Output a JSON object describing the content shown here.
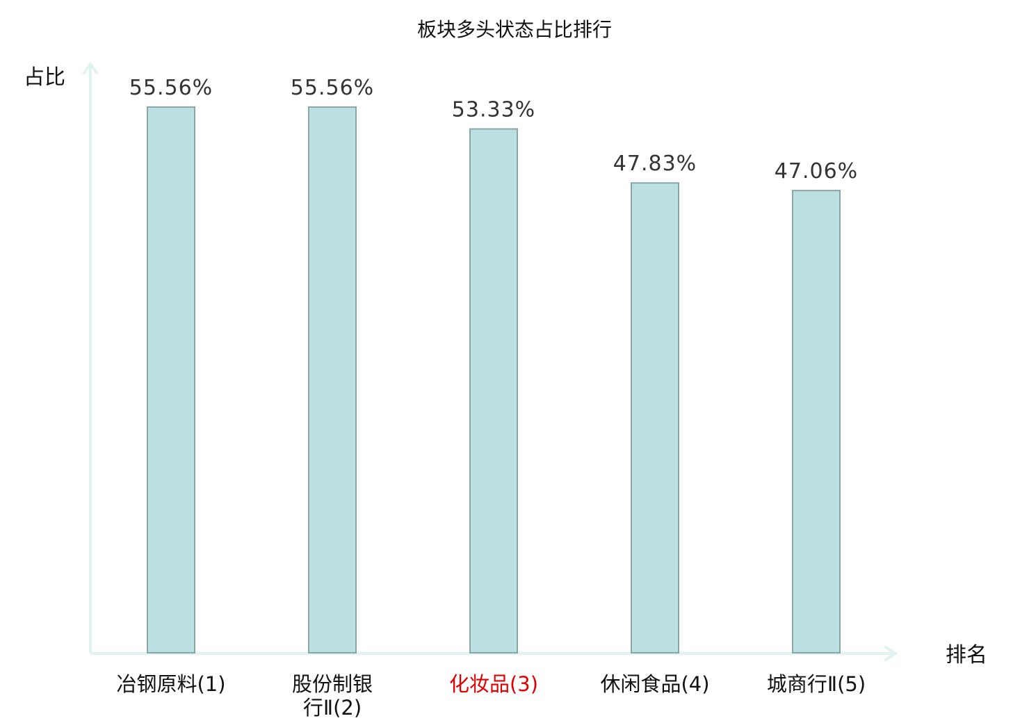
{
  "chart_data": {
    "type": "bar",
    "title": "板块多头状态占比排行",
    "xlabel": "排名",
    "ylabel": "占比",
    "categories": [
      "冶钢原料(1)",
      "股份制银行Ⅱ(2)",
      "化妆品(3)",
      "休闲食品(4)",
      "城商行Ⅱ(5)"
    ],
    "category_lines": [
      [
        "冶钢原料(1)"
      ],
      [
        "股份制银",
        "行Ⅱ(2)"
      ],
      [
        "化妆品(3)"
      ],
      [
        "休闲食品(4)"
      ],
      [
        "城商行Ⅱ(5)"
      ]
    ],
    "values": [
      55.56,
      55.56,
      53.33,
      47.83,
      47.06
    ],
    "value_labels": [
      "55.56%",
      "55.56%",
      "53.33%",
      "47.83%",
      "47.06%"
    ],
    "highlight_index": 2,
    "ylim": [
      0,
      55.56
    ],
    "grid": false,
    "legend": "none",
    "colors": {
      "bar_fill": "#bce0e1",
      "bar_stroke": "#8aa7a8",
      "axis": "#e0f3f1",
      "highlight_label": "#e00000",
      "tick_label": "#111111"
    }
  }
}
